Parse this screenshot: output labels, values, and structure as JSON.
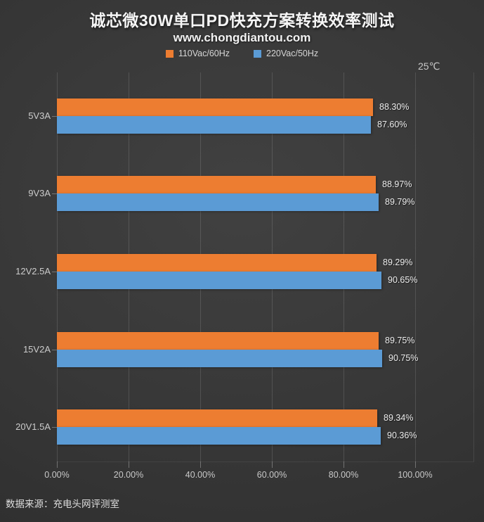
{
  "header": {
    "title": "诚芯微30W单口PD快充方案转换效率测试",
    "subtitle": "www.chongdiantou.com"
  },
  "annotation": {
    "temperature": "25℃"
  },
  "footer": {
    "source": "数据来源：充电头网评测室"
  },
  "colors": {
    "series_110vac": "#ED7D31",
    "series_220vac": "#5B9BD5",
    "background": "#383838",
    "text": "#d6d6d6"
  },
  "chart_data": {
    "type": "bar",
    "orientation": "horizontal",
    "title": "诚芯微30W单口PD快充方案转换效率测试",
    "subtitle": "www.chongdiantou.com",
    "categories": [
      "5V3A",
      "9V3A",
      "12V2.5A",
      "15V2A",
      "20V1.5A"
    ],
    "series": [
      {
        "name": "110Vac/60Hz",
        "color": "#ED7D31",
        "values": [
          88.3,
          88.97,
          89.29,
          89.75,
          89.34
        ],
        "labels": [
          "88.30%",
          "88.97%",
          "89.29%",
          "89.75%",
          "89.34%"
        ]
      },
      {
        "name": "220Vac/50Hz",
        "color": "#5B9BD5",
        "values": [
          87.6,
          89.79,
          90.65,
          90.75,
          90.36
        ],
        "labels": [
          "87.60%",
          "89.79%",
          "90.65%",
          "90.75%",
          "90.36%"
        ]
      }
    ],
    "xlabel": "",
    "ylabel": "",
    "x_axis": {
      "min": 0,
      "max": 100,
      "major_unit": 20,
      "ticks": [
        "0.00%",
        "20.00%",
        "40.00%",
        "60.00%",
        "80.00%",
        "100.00%"
      ],
      "gridlines": true
    },
    "legend_position": "top",
    "annotation": "25℃",
    "source_note": "数据来源：充电头网评测室"
  }
}
